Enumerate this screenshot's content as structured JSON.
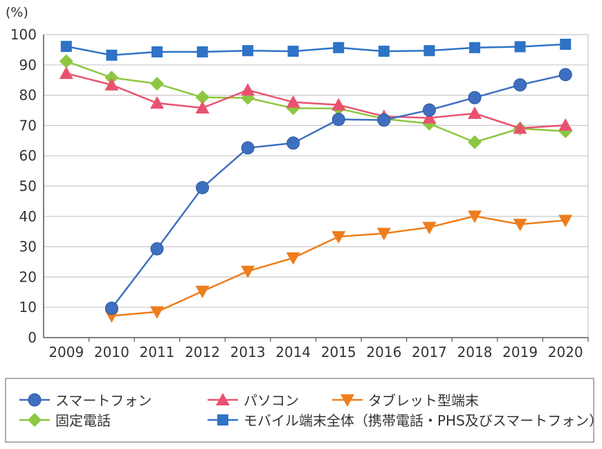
{
  "chart_data": {
    "type": "line",
    "ylabel": "(%)",
    "ylim": [
      0,
      100
    ],
    "yticks": [
      0,
      10,
      20,
      30,
      40,
      50,
      60,
      70,
      80,
      90,
      100
    ],
    "grid": true,
    "legend_placement": "bottom",
    "categories": [
      "2009",
      "2010",
      "2011",
      "2012",
      "2013",
      "2014",
      "2015",
      "2016",
      "2017",
      "2018",
      "2019",
      "2020"
    ],
    "series": [
      {
        "name": "スマートフォン",
        "color": "#3f6fc0",
        "marker": "circle",
        "values": [
          null,
          9.7,
          29.3,
          49.5,
          62.6,
          64.2,
          72.0,
          71.8,
          75.1,
          79.2,
          83.4,
          86.8
        ]
      },
      {
        "name": "パソコン",
        "color": "#e9526f",
        "marker": "triangle-up",
        "values": [
          87.2,
          83.4,
          77.4,
          75.8,
          81.7,
          77.7,
          76.8,
          73.0,
          72.5,
          74.0,
          69.1,
          70.1
        ]
      },
      {
        "name": "タブレット型端末",
        "color": "#ee7d1b",
        "marker": "triangle-down",
        "values": [
          null,
          7.2,
          8.5,
          15.3,
          21.9,
          26.3,
          33.3,
          34.4,
          36.4,
          40.1,
          37.4,
          38.7
        ]
      },
      {
        "name": "固定電話",
        "color": "#8dc641",
        "marker": "diamond",
        "values": [
          91.2,
          85.8,
          83.8,
          79.3,
          79.1,
          75.7,
          75.6,
          72.2,
          70.6,
          64.5,
          69.0,
          68.1
        ]
      },
      {
        "name": "モバイル端末全体（携帯電話・PHS及びスマートフォン）",
        "color": "#2e73c6",
        "marker": "square",
        "values": [
          96.1,
          93.2,
          94.3,
          94.3,
          94.7,
          94.5,
          95.7,
          94.5,
          94.7,
          95.7,
          96.0,
          96.8
        ]
      }
    ]
  }
}
